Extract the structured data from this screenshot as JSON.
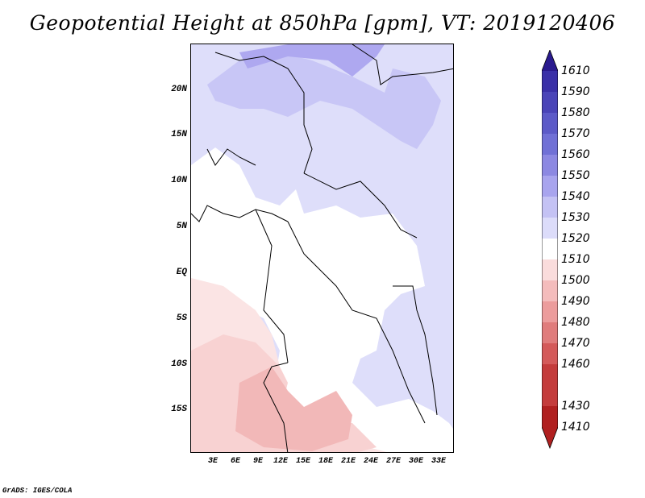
{
  "title": "Geopotential Height at 850hPa [gpm], VT: 2019120406",
  "footer": "GrADS: IGES/COLA",
  "map": {
    "lat_labels": [
      "20N",
      "15N",
      "10N",
      "5N",
      "EQ",
      "5S",
      "10S",
      "15S"
    ],
    "lon_labels": [
      "3E",
      "6E",
      "9E",
      "12E",
      "15E",
      "18E",
      "21E",
      "24E",
      "27E",
      "30E",
      "33E"
    ]
  },
  "legend": {
    "levels": [
      "1610",
      "1590",
      "1580",
      "1570",
      "1560",
      "1550",
      "1540",
      "1530",
      "1520",
      "1510",
      "1500",
      "1490",
      "1480",
      "1470",
      "1460",
      "1430",
      "1410"
    ],
    "colors": {
      "1600": "#2a1a8e",
      "1585": "#3a30a8",
      "1575": "#4a44b8",
      "1565": "#5c5ac8",
      "1555": "#7070d6",
      "1545": "#8c88e2",
      "1535": "#a8a4ee",
      "1525": "#c4c2f4",
      "1515": "#dcdcfa",
      "1505": "#ffffff",
      "1495": "#fadcdc",
      "1485": "#f4bcbc",
      "1475": "#ec9c9c",
      "1465": "#e07c7c",
      "1445": "#d45a5a",
      "1420": "#c43c3c",
      "1410": "#b02020"
    }
  },
  "field_colors": {
    "c1545": "#aea8f0",
    "c1535": "#c8c6f6",
    "c1525": "#dedefa",
    "c1515": "#ffffff",
    "c1505": "#fbe4e4",
    "c1495": "#f8d2d2",
    "c1485": "#f2b8b8"
  }
}
